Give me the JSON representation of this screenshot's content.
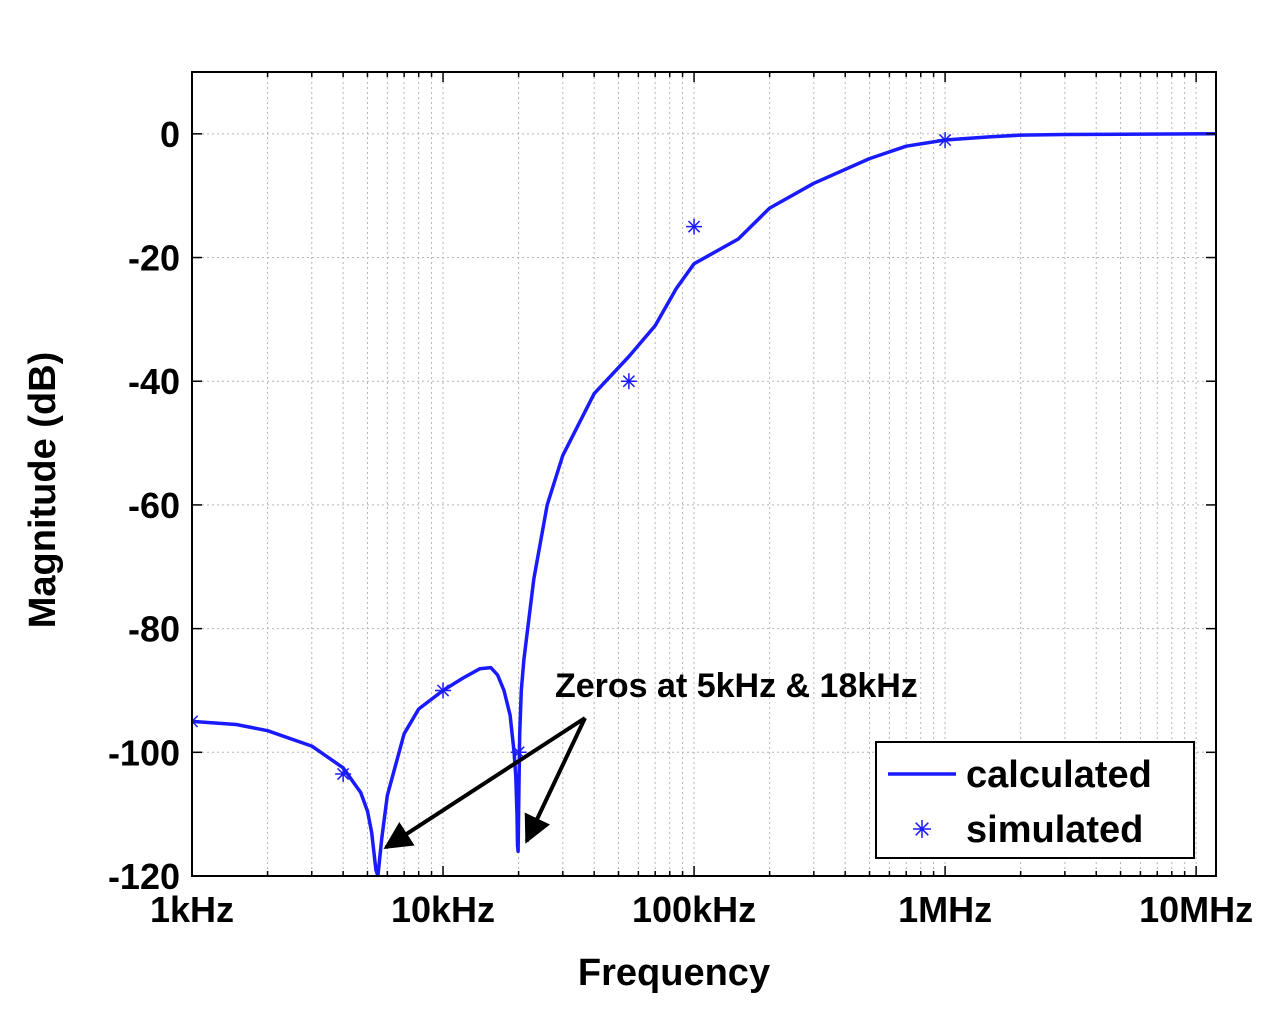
{
  "chart_data": {
    "type": "line",
    "xscale": "log",
    "xlim": [
      1000,
      12000000
    ],
    "ylim": [
      -120,
      10
    ],
    "grid": true,
    "xlabel": "Frequency",
    "ylabel": "Magnitude (dB)",
    "x_ticks": [
      {
        "value": 1000,
        "label": "1kHz"
      },
      {
        "value": 10000,
        "label": "10kHz"
      },
      {
        "value": 100000,
        "label": "100kHz"
      },
      {
        "value": 1000000,
        "label": "1MHz"
      },
      {
        "value": 10000000,
        "label": "10MHz"
      }
    ],
    "y_ticks": [
      {
        "value": 0,
        "label": "0"
      },
      {
        "value": -20,
        "label": "-20"
      },
      {
        "value": -40,
        "label": "-40"
      },
      {
        "value": -60,
        "label": "-60"
      },
      {
        "value": -80,
        "label": "-80"
      },
      {
        "value": -100,
        "label": "-100"
      },
      {
        "value": -120,
        "label": "-120"
      }
    ],
    "series": [
      {
        "name": "calculated",
        "style": "line",
        "color": "#1a1aff",
        "x": [
          1000,
          1500,
          2000,
          3000,
          4000,
          4700,
          5000,
          5200,
          5300,
          5400,
          5500,
          5700,
          6000,
          7000,
          8000,
          10000,
          12000,
          14000,
          15500,
          16500,
          17500,
          18500,
          19200,
          19500,
          19700,
          19800,
          19900,
          20000,
          20200,
          20500,
          21000,
          23000,
          26000,
          30000,
          40000,
          55000,
          70000,
          85000,
          100000,
          150000,
          200000,
          300000,
          500000,
          700000,
          1000000,
          1500000,
          2000000,
          3000000,
          5000000,
          12000000
        ],
        "y": [
          -95,
          -95.5,
          -96.5,
          -99,
          -102.5,
          -106.5,
          -109.5,
          -113,
          -116,
          -119,
          -120,
          -114,
          -107,
          -97,
          -93,
          -90,
          -88,
          -86.5,
          -86.3,
          -87.5,
          -90,
          -94,
          -100,
          -104,
          -110,
          -115,
          -116,
          -110,
          -97,
          -90,
          -85,
          -72,
          -60,
          -52,
          -42,
          -36,
          -31,
          -25,
          -21,
          -17,
          -12,
          -8,
          -4,
          -2,
          -1,
          -0.5,
          -0.2,
          -0.1,
          -0.05,
          0
        ],
        "y_note": ""
      },
      {
        "name": "simulated",
        "style": "markers",
        "marker": "asterisk",
        "color": "#1a1aff",
        "x": [
          1000,
          4000,
          10000,
          20000,
          55000,
          100000,
          1000000
        ],
        "y": [
          -95,
          -103.5,
          -90,
          -100,
          -40,
          -15,
          -1
        ]
      }
    ],
    "annotations": [
      {
        "text": "Zeros at 5kHz & 18kHz",
        "arrows_to": [
          {
            "x": 5500,
            "y": -117
          },
          {
            "x": 20000,
            "y": -116
          }
        ]
      }
    ],
    "legend_position": "bottom-right"
  }
}
